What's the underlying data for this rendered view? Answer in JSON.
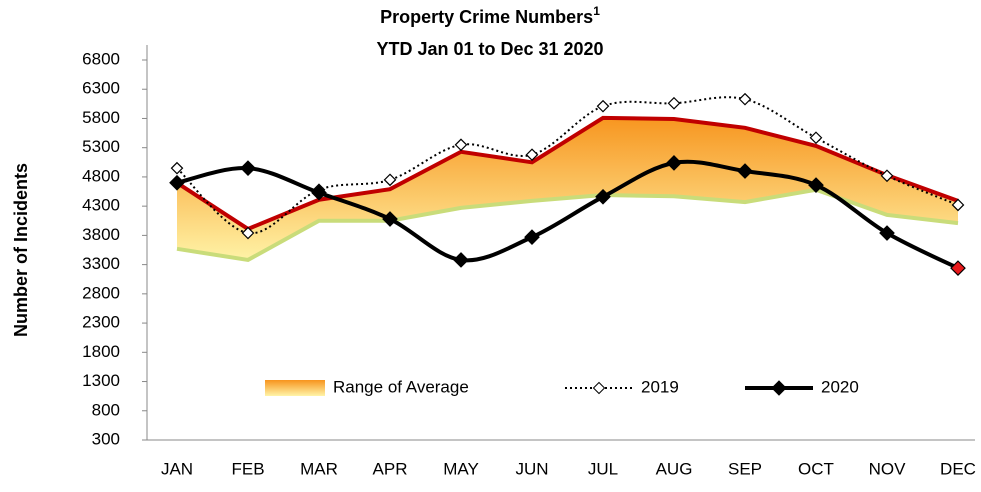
{
  "chart_data": {
    "type": "line",
    "title": "Property Crime Numbers",
    "title_superscript": "1",
    "subtitle": "YTD Jan 01 to Dec 31 2020",
    "y_label": "Number of Incidents",
    "categories": [
      "JAN",
      "FEB",
      "MAR",
      "APR",
      "MAY",
      "JUN",
      "JUL",
      "AUG",
      "SEP",
      "OCT",
      "NOV",
      "DEC"
    ],
    "band": {
      "name": "Range of Average",
      "upper_color": "#c00000",
      "lower_color": "#c9dc7a",
      "fill_top": "#f7941d",
      "fill_bottom": "#fff4a8",
      "upper": [
        4700,
        3910,
        4410,
        4590,
        5230,
        5050,
        5810,
        5790,
        5640,
        5330,
        4830,
        4390
      ],
      "lower": [
        3570,
        3380,
        4050,
        4050,
        4270,
        4390,
        4490,
        4470,
        4370,
        4580,
        4150,
        4010
      ]
    },
    "series": [
      {
        "name": "2019",
        "color": "#000000",
        "dashed": true,
        "marker": "open-diamond",
        "values": [
          4950,
          3840,
          4580,
          4750,
          5350,
          5180,
          6010,
          6060,
          6130,
          5470,
          4820,
          4320
        ]
      },
      {
        "name": "2020",
        "color": "#000000",
        "dashed": false,
        "marker": "filled-diamond",
        "highlight": {
          "index": 11,
          "color": "#e8191b"
        },
        "values": [
          4700,
          4950,
          4530,
          4080,
          3380,
          3770,
          4460,
          5040,
          4900,
          4660,
          3840,
          3240
        ]
      }
    ],
    "ylim": [
      300,
      6800
    ],
    "yticks": [
      300,
      800,
      1300,
      1800,
      2300,
      2800,
      3300,
      3800,
      4300,
      4800,
      5300,
      5800,
      6300,
      6800
    ]
  }
}
